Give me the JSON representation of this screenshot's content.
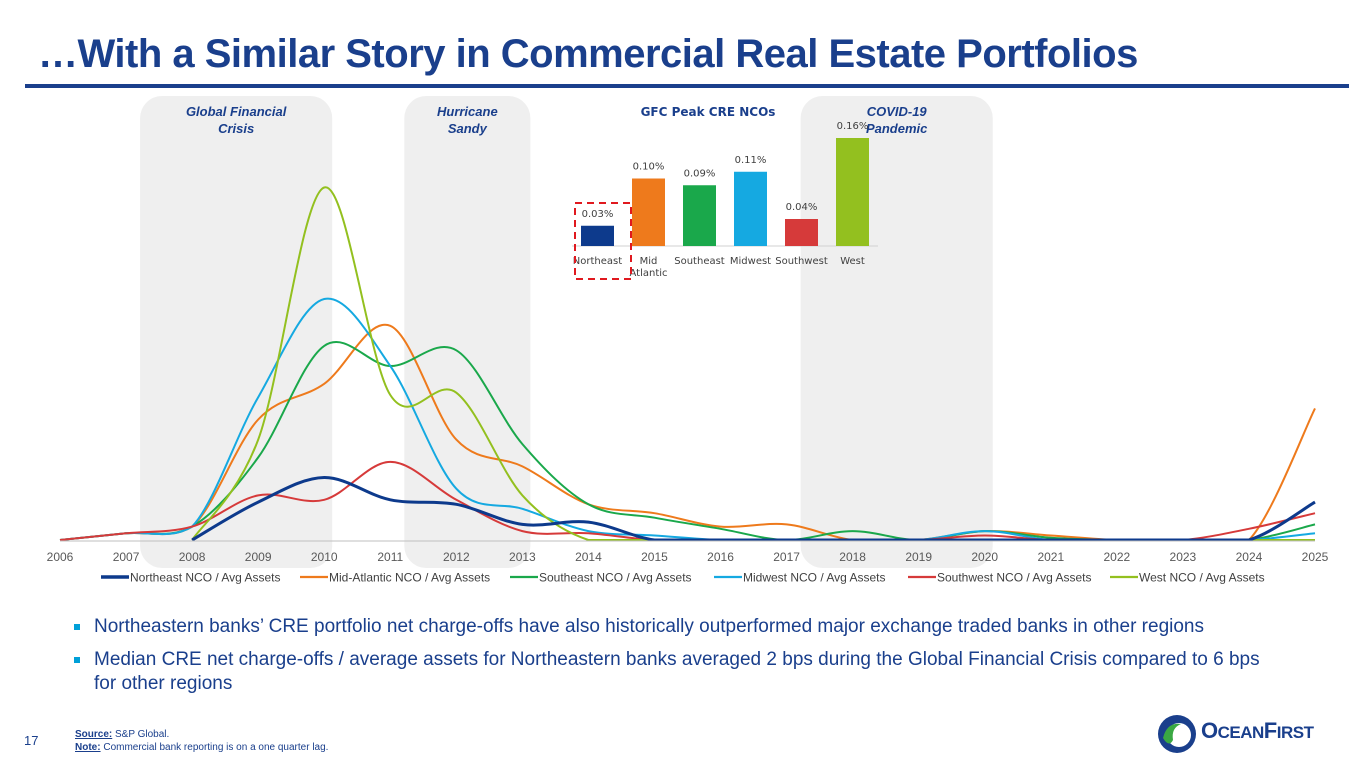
{
  "title": "…With a Similar Story in Commercial Real Estate Portfolios",
  "chart_data": [
    {
      "type": "line",
      "x": [
        "2006",
        "2007",
        "2008",
        "2009",
        "2010",
        "2011",
        "2012",
        "2013",
        "2014",
        "2015",
        "2016",
        "2017",
        "2018",
        "2019",
        "2020",
        "2021",
        "2022",
        "2023",
        "2024",
        "2025"
      ],
      "ylim": [
        0,
        0.16
      ],
      "series": [
        {
          "name": "Northeast NCO / Avg Assets",
          "color": "#0d3a8c",
          "values": [
            null,
            null,
            0.0,
            0.017,
            0.028,
            0.018,
            0.016,
            0.007,
            0.008,
            0.0,
            0.0,
            0.0,
            0.0,
            0.0,
            0.0,
            0.0,
            0.0,
            0.0,
            0.0,
            0.017
          ]
        },
        {
          "name": "Mid-Atlantic NCO / Avg Assets",
          "color": "#ee7a1c",
          "values": [
            0.0,
            0.003,
            0.006,
            0.054,
            0.07,
            0.096,
            0.045,
            0.033,
            0.016,
            0.012,
            0.006,
            0.007,
            0.0,
            0.0,
            0.004,
            0.002,
            0.0,
            0.0,
            0.0,
            0.059
          ]
        },
        {
          "name": "Southeast NCO / Avg Assets",
          "color": "#1aa84b",
          "values": [
            0.0,
            0.003,
            0.006,
            0.037,
            0.087,
            0.078,
            0.085,
            0.043,
            0.016,
            0.01,
            0.005,
            0.0,
            0.004,
            0.0,
            0.004,
            0.001,
            0.0,
            0.0,
            0.0,
            0.007
          ]
        },
        {
          "name": "Midwest NCO / Avg Assets",
          "color": "#15a9e1",
          "values": [
            0.0,
            0.003,
            0.006,
            0.064,
            0.108,
            0.078,
            0.023,
            0.014,
            0.004,
            0.002,
            0.0,
            0.0,
            0.0,
            0.0,
            0.004,
            0.0,
            0.0,
            0.0,
            0.0,
            0.003
          ]
        },
        {
          "name": "Southwest NCO / Avg Assets",
          "color": "#d63a3a",
          "values": [
            0.0,
            0.003,
            0.006,
            0.02,
            0.018,
            0.035,
            0.018,
            0.004,
            0.003,
            0.0,
            0.0,
            0.0,
            0.0,
            0.0,
            0.002,
            0.0,
            0.0,
            0.0,
            0.005,
            0.012
          ]
        },
        {
          "name": "West NCO / Avg Assets",
          "color": "#93c01f",
          "values": [
            null,
            null,
            0.0,
            0.045,
            0.158,
            0.065,
            0.066,
            0.02,
            0.0,
            0.0,
            0.0,
            0.0,
            0.0,
            0.0,
            0.0,
            0.0,
            0.0,
            0.0,
            0.0,
            0.0
          ]
        }
      ],
      "shaded_periods": [
        {
          "label_line1": "Global Financial",
          "label_line2": "Crisis",
          "start": "2008",
          "end": "2010"
        },
        {
          "label_line1": "Hurricane",
          "label_line2": "Sandy",
          "start": "2012",
          "end": "2013"
        },
        {
          "label_line1": "COVID-19",
          "label_line2": "Pandemic",
          "start": "2018",
          "end": "2020"
        }
      ],
      "legend_position": "bottom",
      "grid": false
    },
    {
      "type": "bar",
      "title": "GFC Peak CRE NCOs",
      "categories": [
        "Northeast",
        "Mid Atlantic",
        "Southeast",
        "Midwest",
        "Southwest",
        "West"
      ],
      "values": [
        0.03,
        0.1,
        0.09,
        0.11,
        0.04,
        0.16
      ],
      "value_labels": [
        "0.03%",
        "0.10%",
        "0.09%",
        "0.11%",
        "0.04%",
        "0.16%"
      ],
      "colors": [
        "#0d3a8c",
        "#ee7a1c",
        "#1aa84b",
        "#15a9e1",
        "#d63a3a",
        "#93c01f"
      ],
      "highlighted_category": "Northeast"
    }
  ],
  "bullets": [
    "Northeastern banks’ CRE portfolio net charge-offs have also historically outperformed major exchange traded banks in other regions",
    "Median CRE net charge-offs / average assets for Northeastern banks averaged 2 bps during the Global Financial Crisis compared to 6 bps for other regions"
  ],
  "page_number": "17",
  "source_label": "Source:",
  "source_text": "S&P Global.",
  "note_label": "Note:",
  "note_text": "Commercial bank reporting is on a one quarter lag.",
  "logo": {
    "text_big_1": "O",
    "text_small_1": "CEAN",
    "text_big_2": "F",
    "text_small_2": "IRST"
  }
}
